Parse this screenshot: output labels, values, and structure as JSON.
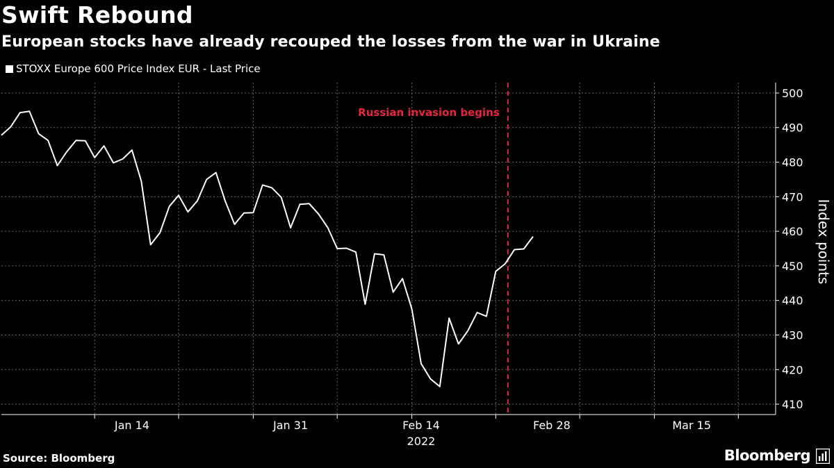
{
  "header": {
    "title": "Swift Rebound",
    "subtitle": "European stocks have already recouped the losses from the war in Ukraine"
  },
  "legend": {
    "label": "STOXX Europe 600 Price Index EUR - Last Price",
    "color": "#ffffff"
  },
  "footer": {
    "source": "Source: Bloomberg",
    "brand": "Bloomberg"
  },
  "chart_data": {
    "type": "line",
    "title": "Swift Rebound",
    "subtitle": "European stocks have already recouped the losses from the war in Ukraine",
    "ylabel": "Index points",
    "xlabel": "2022",
    "ylim": [
      407,
      503
    ],
    "yticks": [
      410,
      420,
      430,
      440,
      450,
      460,
      470,
      480,
      490,
      500
    ],
    "x_day_range": [
      0,
      83
    ],
    "xtick_days": [
      10,
      19,
      27,
      36,
      44,
      53,
      62,
      70,
      79
    ],
    "xtick_labels": [
      {
        "day": 14,
        "label": "Jan 14"
      },
      {
        "day": 31,
        "label": "Jan 31"
      },
      {
        "day": 45,
        "label": "Feb 14"
      },
      {
        "day": 59,
        "label": "Feb 28"
      },
      {
        "day": 74,
        "label": "Mar 15"
      }
    ],
    "year_label": {
      "day": 45,
      "label": "2022"
    },
    "grid": true,
    "line_color": "#ffffff",
    "annotation": {
      "day": 54.3,
      "label": "Russian invasion begins",
      "color": "#e8253f"
    },
    "series": [
      {
        "name": "STOXX Europe 600 Price Index EUR - Last Price",
        "points": [
          [
            0,
            487.8
          ],
          [
            1,
            490.2
          ],
          [
            2,
            494.3
          ],
          [
            3,
            494.7
          ],
          [
            4,
            488.2
          ],
          [
            5,
            486.3
          ],
          [
            6,
            479.0
          ],
          [
            7,
            483.0
          ],
          [
            8,
            486.3
          ],
          [
            9,
            486.2
          ],
          [
            10,
            481.3
          ],
          [
            11,
            484.7
          ],
          [
            12,
            479.8
          ],
          [
            13,
            480.9
          ],
          [
            14,
            483.5
          ],
          [
            15,
            474.5
          ],
          [
            16,
            456.1
          ],
          [
            17,
            459.6
          ],
          [
            18,
            467.2
          ],
          [
            19,
            470.4
          ],
          [
            20,
            465.6
          ],
          [
            21,
            468.8
          ],
          [
            22,
            475.0
          ],
          [
            23,
            477.0
          ],
          [
            24,
            468.7
          ],
          [
            25,
            462.0
          ],
          [
            26,
            465.3
          ],
          [
            27,
            465.4
          ],
          [
            28,
            473.4
          ],
          [
            29,
            472.6
          ],
          [
            30,
            469.8
          ],
          [
            31,
            461.0
          ],
          [
            32,
            467.8
          ],
          [
            33,
            468.0
          ],
          [
            34,
            465.0
          ],
          [
            35,
            461.0
          ],
          [
            36,
            455.0
          ],
          [
            37,
            455.1
          ],
          [
            38,
            454.0
          ],
          [
            39,
            438.9
          ],
          [
            40,
            453.5
          ],
          [
            41,
            453.2
          ],
          [
            42,
            442.4
          ],
          [
            43,
            446.3
          ],
          [
            44,
            437.5
          ],
          [
            45,
            421.7
          ],
          [
            46,
            417.3
          ],
          [
            47,
            415.1
          ],
          [
            48,
            434.9
          ],
          [
            49,
            427.4
          ],
          [
            50,
            431.2
          ],
          [
            51,
            436.5
          ],
          [
            52,
            435.4
          ],
          [
            53,
            448.4
          ],
          [
            54,
            450.6
          ],
          [
            55,
            454.7
          ],
          [
            56,
            454.9
          ],
          [
            57,
            458.5
          ]
        ]
      }
    ]
  }
}
